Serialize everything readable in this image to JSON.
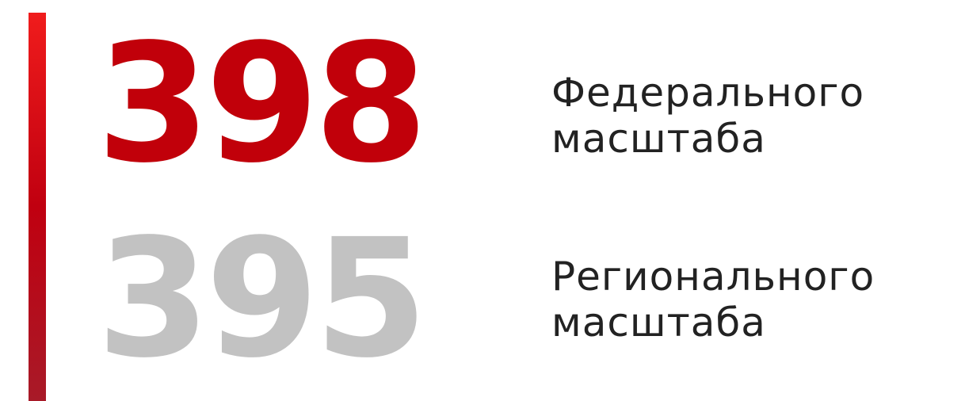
{
  "items": [
    {
      "number": "398",
      "label_line1": "Федерального",
      "label_line2": "масштаба"
    },
    {
      "number": "395",
      "label_line1": "Регионального",
      "label_line2": "масштаба"
    }
  ]
}
